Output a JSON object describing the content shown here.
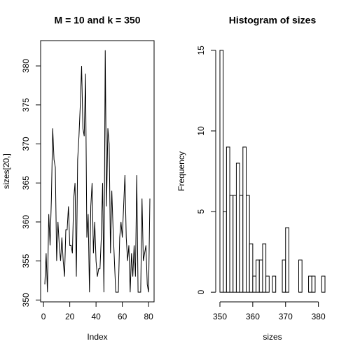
{
  "chart_data": [
    {
      "type": "line",
      "title": "M =  10 and k = 350",
      "x_label": "Index",
      "y_label": "sizes[20,]",
      "color": "#000000",
      "x": [
        1,
        2,
        3,
        4,
        5,
        6,
        7,
        8,
        9,
        10,
        11,
        12,
        13,
        14,
        15,
        16,
        17,
        18,
        19,
        20,
        21,
        22,
        23,
        24,
        25,
        26,
        27,
        28,
        29,
        30,
        31,
        32,
        33,
        34,
        35,
        36,
        37,
        38,
        39,
        40,
        41,
        42,
        43,
        44,
        45,
        46,
        47,
        48,
        49,
        50,
        51,
        52,
        53,
        54,
        55,
        56,
        57,
        58,
        59,
        60,
        61,
        62,
        63,
        64,
        65,
        66,
        67,
        68,
        69,
        70,
        71,
        72,
        73,
        74,
        75,
        76,
        77,
        78,
        79,
        80,
        81
      ],
      "values": [
        352,
        356,
        351,
        361,
        357,
        363,
        372,
        368,
        367,
        355,
        360,
        357,
        355,
        358,
        355,
        353,
        359,
        359,
        362,
        357,
        357,
        356,
        363,
        365,
        353,
        368,
        371,
        375,
        380,
        372,
        371,
        379,
        358,
        361,
        351,
        362,
        365,
        356,
        360,
        355,
        353,
        354,
        354,
        358,
        365,
        351,
        382,
        362,
        372,
        370,
        356,
        364,
        359,
        355,
        351,
        351,
        351,
        358,
        360,
        358,
        362,
        366,
        358,
        355,
        357,
        351,
        356,
        353,
        357,
        353,
        366,
        351,
        351,
        351,
        363,
        355,
        356,
        357,
        352,
        351,
        363
      ],
      "xlim": [
        -2.2,
        84.2
      ],
      "ylim": [
        349.76,
        383.24
      ],
      "xticks": [
        0,
        20,
        40,
        60,
        80
      ],
      "yticks": [
        350,
        355,
        360,
        365,
        370,
        375,
        380
      ]
    },
    {
      "type": "histogram",
      "title": "Histogram of sizes",
      "x_label": "sizes",
      "y_label": "Frequency",
      "color": "#ffffff",
      "bins": [
        350,
        351,
        352,
        353,
        354,
        355,
        356,
        357,
        358,
        359,
        360,
        361,
        362,
        363,
        364,
        365,
        366,
        367,
        368,
        369,
        370,
        371,
        372,
        373,
        374,
        375,
        376,
        377,
        378,
        379,
        380,
        381,
        382
      ],
      "values": [
        15,
        5,
        9,
        6,
        6,
        8,
        6,
        9,
        6,
        3,
        1,
        2,
        2,
        3,
        1,
        0,
        1,
        0,
        0,
        2,
        4,
        0,
        0,
        0,
        2,
        0,
        0,
        1,
        1,
        0,
        0,
        1
      ],
      "xlim": [
        348.72,
        383.28
      ],
      "ylim": [
        -0.6,
        15.6
      ],
      "xticks": [
        350,
        360,
        370,
        380
      ],
      "yticks": [
        0,
        5,
        10,
        15
      ]
    }
  ]
}
